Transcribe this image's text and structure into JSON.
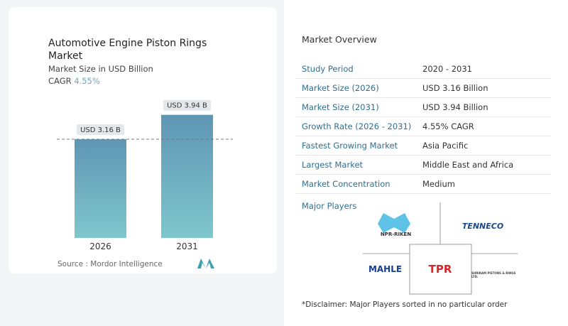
{
  "chart": {
    "title": "Automotive Engine Piston Rings Market",
    "subtitle": "Market Size in USD Billion",
    "cagr_label": "CAGR",
    "cagr_value": "4.55%",
    "source": "Source :  Mordor Intelligence"
  },
  "chart_data": {
    "type": "bar",
    "title": "Automotive Engine Piston Rings Market",
    "categories": [
      "2026",
      "2031"
    ],
    "values": [
      3.16,
      3.94
    ],
    "data_labels": [
      "USD 3.16 B",
      "USD 3.94 B"
    ],
    "ylabel": "Market Size in USD Billion",
    "ylim": [
      0,
      4.5
    ],
    "grid": false,
    "bar_color_top": "#5f95b5",
    "bar_color_bottom": "#7fc7cc"
  },
  "overview": {
    "title": "Market Overview",
    "rows": [
      {
        "label": "Study Period",
        "value": "2020 - 2031"
      },
      {
        "label": "Market Size (2026)",
        "value": "USD 3.16 Billion"
      },
      {
        "label": "Market Size (2031)",
        "value": "USD 3.94 Billion"
      },
      {
        "label": "Growth Rate (2026 - 2031)",
        "value": "4.55% CAGR"
      },
      {
        "label": "Fastest Growing Market",
        "value": "Asia Pacific"
      },
      {
        "label": "Largest Market",
        "value": "Middle East and Africa"
      },
      {
        "label": "Market Concentration",
        "value": "Medium"
      }
    ]
  },
  "players": {
    "title": "Major Players",
    "names": [
      "NPR-RIKEN",
      "TENNECO",
      "MAHLE",
      "TPR",
      "SHRIRAM PISTONS & RINGS LTD."
    ]
  },
  "disclaimer": "*Disclaimer: Major Players sorted in no particular order"
}
